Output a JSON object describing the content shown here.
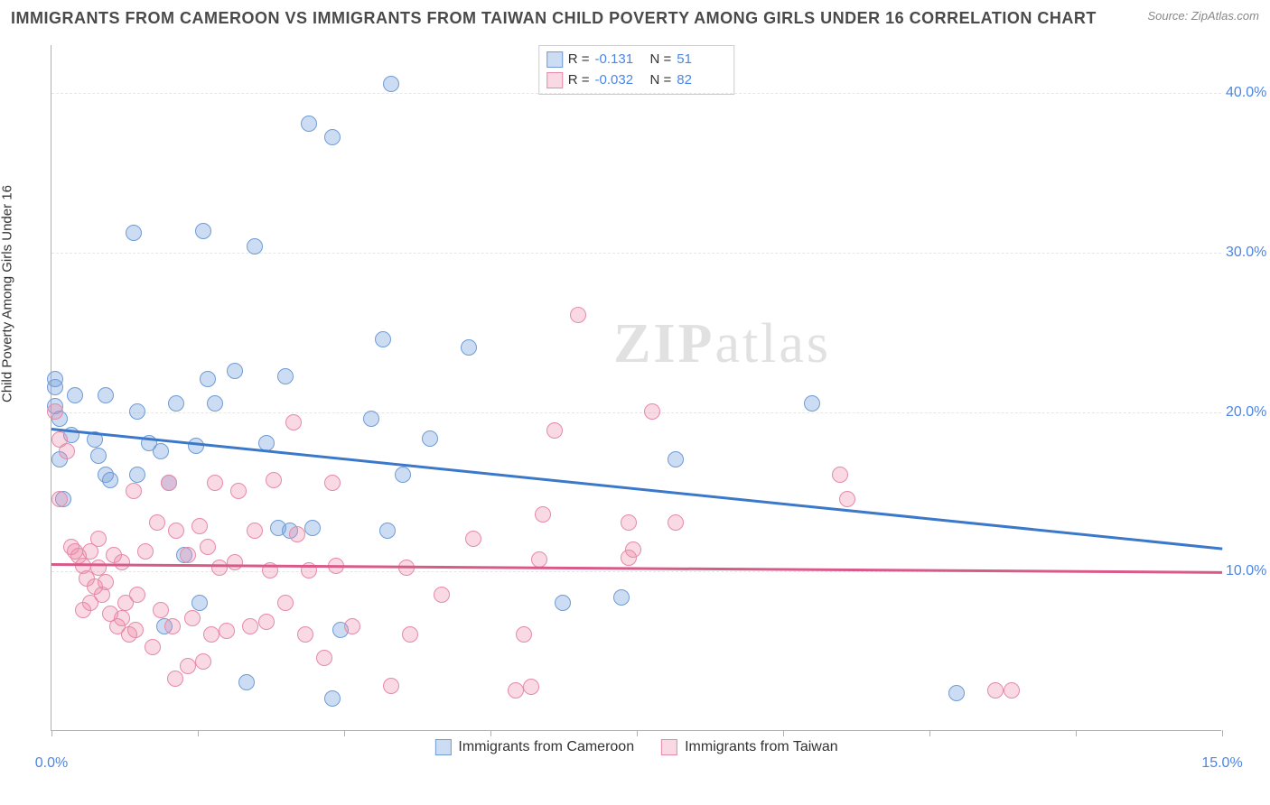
{
  "title": "IMMIGRANTS FROM CAMEROON VS IMMIGRANTS FROM TAIWAN CHILD POVERTY AMONG GIRLS UNDER 16 CORRELATION CHART",
  "source_prefix": "Source: ",
  "source_name": "ZipAtlas.com",
  "y_axis_label": "Child Poverty Among Girls Under 16",
  "watermark": {
    "bold": "ZIP",
    "rest": "atlas"
  },
  "chart": {
    "type": "scatter",
    "background_color": "#ffffff",
    "grid_color": "#e6e6e6",
    "axis_color": "#b0b0b0",
    "tick_color": "#4a86e8",
    "xlim": [
      0,
      15
    ],
    "ylim": [
      0,
      43
    ],
    "y_ticks": [
      10,
      20,
      30,
      40
    ],
    "y_tick_labels": [
      "10.0%",
      "20.0%",
      "30.0%",
      "40.0%"
    ],
    "x_tick_positions": [
      0,
      1.88,
      3.75,
      5.63,
      7.5,
      9.38,
      11.25,
      13.13,
      15
    ],
    "x_tick_labels_shown": {
      "0": "0.0%",
      "15": "15.0%"
    },
    "marker_radius": 9,
    "marker_border_width": 1.5,
    "series": [
      {
        "id": "cameroon",
        "label": "Immigrants from Cameroon",
        "fill_color": "rgba(120,163,220,0.38)",
        "stroke_color": "#6f9cd6",
        "trend_color": "#3b78c9",
        "r_label": "R =",
        "r_value": "-0.131",
        "n_label": "N =",
        "n_value": "51",
        "trend": {
          "y_at_xmin": 19.0,
          "y_at_xmax": 11.5
        },
        "points": [
          [
            0.05,
            20.3
          ],
          [
            0.05,
            21.5
          ],
          [
            0.1,
            19.5
          ],
          [
            0.1,
            17.0
          ],
          [
            0.25,
            18.5
          ],
          [
            0.3,
            21.0
          ],
          [
            0.55,
            18.2
          ],
          [
            0.6,
            17.2
          ],
          [
            0.7,
            16.0
          ],
          [
            0.75,
            15.7
          ],
          [
            0.7,
            21.0
          ],
          [
            1.1,
            20.0
          ],
          [
            1.1,
            16.0
          ],
          [
            1.05,
            31.2
          ],
          [
            1.25,
            18.0
          ],
          [
            1.4,
            17.5
          ],
          [
            1.45,
            6.5
          ],
          [
            1.5,
            15.5
          ],
          [
            1.6,
            20.5
          ],
          [
            1.7,
            11.0
          ],
          [
            1.85,
            17.8
          ],
          [
            1.9,
            8.0
          ],
          [
            1.95,
            31.3
          ],
          [
            2.0,
            22.0
          ],
          [
            2.1,
            20.5
          ],
          [
            2.35,
            22.5
          ],
          [
            2.5,
            3.0
          ],
          [
            2.6,
            30.3
          ],
          [
            2.75,
            18.0
          ],
          [
            2.9,
            12.7
          ],
          [
            3.0,
            22.2
          ],
          [
            3.05,
            12.5
          ],
          [
            3.3,
            38.0
          ],
          [
            3.35,
            12.7
          ],
          [
            3.6,
            37.2
          ],
          [
            3.6,
            2.0
          ],
          [
            3.7,
            6.3
          ],
          [
            4.1,
            19.5
          ],
          [
            4.25,
            24.5
          ],
          [
            4.3,
            12.5
          ],
          [
            4.35,
            40.5
          ],
          [
            4.5,
            16.0
          ],
          [
            4.85,
            18.3
          ],
          [
            5.35,
            24.0
          ],
          [
            6.55,
            8.0
          ],
          [
            7.3,
            8.3
          ],
          [
            8.0,
            17.0
          ],
          [
            9.75,
            20.5
          ],
          [
            11.6,
            2.3
          ],
          [
            0.15,
            14.5
          ],
          [
            0.05,
            22.0
          ]
        ]
      },
      {
        "id": "taiwan",
        "label": "Immigrants from Taiwan",
        "fill_color": "rgba(236,140,170,0.33)",
        "stroke_color": "#e68aa8",
        "trend_color": "#d85a88",
        "r_label": "R =",
        "r_value": "-0.032",
        "n_label": "N =",
        "n_value": "82",
        "trend": {
          "y_at_xmin": 10.5,
          "y_at_xmax": 10.0
        },
        "points": [
          [
            0.05,
            20.0
          ],
          [
            0.1,
            18.2
          ],
          [
            0.1,
            14.5
          ],
          [
            0.2,
            17.5
          ],
          [
            0.25,
            11.5
          ],
          [
            0.3,
            11.2
          ],
          [
            0.35,
            10.9
          ],
          [
            0.4,
            10.3
          ],
          [
            0.45,
            9.5
          ],
          [
            0.5,
            8.0
          ],
          [
            0.5,
            11.2
          ],
          [
            0.6,
            10.2
          ],
          [
            0.6,
            12.0
          ],
          [
            0.65,
            8.5
          ],
          [
            0.7,
            9.3
          ],
          [
            0.75,
            7.3
          ],
          [
            0.8,
            11.0
          ],
          [
            0.85,
            6.5
          ],
          [
            0.9,
            7.0
          ],
          [
            0.9,
            10.5
          ],
          [
            0.95,
            8.0
          ],
          [
            1.0,
            6.0
          ],
          [
            1.08,
            6.3
          ],
          [
            1.1,
            8.5
          ],
          [
            1.2,
            11.2
          ],
          [
            1.3,
            5.2
          ],
          [
            1.4,
            7.5
          ],
          [
            1.5,
            15.5
          ],
          [
            1.55,
            6.5
          ],
          [
            1.6,
            12.5
          ],
          [
            1.58,
            3.2
          ],
          [
            1.75,
            11.0
          ],
          [
            1.8,
            7.0
          ],
          [
            1.9,
            12.8
          ],
          [
            1.95,
            4.3
          ],
          [
            2.05,
            6.0
          ],
          [
            2.1,
            15.5
          ],
          [
            2.15,
            10.2
          ],
          [
            2.25,
            6.2
          ],
          [
            2.35,
            10.5
          ],
          [
            2.4,
            15.0
          ],
          [
            2.55,
            6.5
          ],
          [
            2.6,
            12.5
          ],
          [
            2.75,
            6.8
          ],
          [
            2.8,
            10.0
          ],
          [
            2.85,
            15.7
          ],
          [
            3.0,
            8.0
          ],
          [
            3.1,
            19.3
          ],
          [
            3.15,
            12.3
          ],
          [
            3.25,
            6.0
          ],
          [
            3.3,
            10.0
          ],
          [
            3.6,
            15.5
          ],
          [
            3.65,
            10.3
          ],
          [
            3.85,
            6.5
          ],
          [
            4.35,
            2.8
          ],
          [
            4.55,
            10.2
          ],
          [
            4.6,
            6.0
          ],
          [
            5.4,
            12.0
          ],
          [
            5.95,
            2.5
          ],
          [
            6.05,
            6.0
          ],
          [
            6.15,
            2.7
          ],
          [
            6.25,
            10.7
          ],
          [
            6.3,
            13.5
          ],
          [
            6.45,
            18.8
          ],
          [
            6.75,
            26.0
          ],
          [
            7.4,
            13.0
          ],
          [
            7.4,
            10.8
          ],
          [
            7.45,
            11.3
          ],
          [
            7.7,
            20.0
          ],
          [
            8.0,
            13.0
          ],
          [
            10.1,
            16.0
          ],
          [
            10.2,
            14.5
          ],
          [
            12.1,
            2.5
          ],
          [
            12.3,
            2.5
          ],
          [
            1.05,
            15.0
          ],
          [
            0.55,
            9.0
          ],
          [
            1.35,
            13.0
          ],
          [
            2.0,
            11.5
          ],
          [
            3.5,
            4.5
          ],
          [
            0.4,
            7.5
          ],
          [
            1.75,
            4.0
          ],
          [
            5.0,
            8.5
          ]
        ]
      }
    ]
  }
}
